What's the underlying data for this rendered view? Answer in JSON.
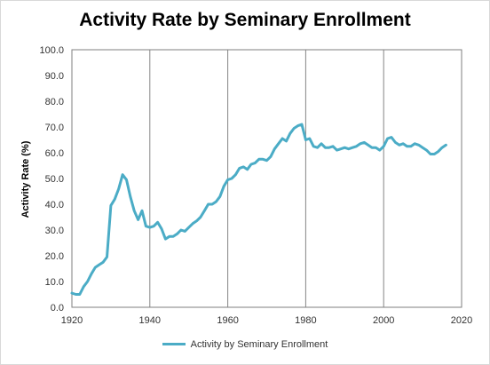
{
  "chart_data": {
    "type": "line",
    "title": "Activity Rate by Seminary Enrollment",
    "xlabel": "",
    "ylabel": "Activity Rate (%)",
    "xlim": [
      1920,
      2020
    ],
    "ylim": [
      0,
      100
    ],
    "x_ticks": [
      1920,
      1940,
      1960,
      1980,
      2000,
      2020
    ],
    "y_ticks": [
      "0.0",
      "10.0",
      "20.0",
      "30.0",
      "40.0",
      "50.0",
      "60.0",
      "70.0",
      "80.0",
      "90.0",
      "100.0"
    ],
    "grid": "vertical major gridlines",
    "legend_position": "bottom",
    "series": [
      {
        "name": "Activity by Seminary Enrollment",
        "color": "#4bacc6",
        "points": [
          [
            1920,
            5.5
          ],
          [
            1921,
            5.0
          ],
          [
            1922,
            5.0
          ],
          [
            1923,
            8.0
          ],
          [
            1924,
            10.0
          ],
          [
            1925,
            13.0
          ],
          [
            1926,
            15.5
          ],
          [
            1927,
            16.5
          ],
          [
            1928,
            17.5
          ],
          [
            1929,
            19.5
          ],
          [
            1930,
            39.5
          ],
          [
            1931,
            42.0
          ],
          [
            1932,
            46.0
          ],
          [
            1933,
            51.5
          ],
          [
            1934,
            49.5
          ],
          [
            1935,
            43.0
          ],
          [
            1936,
            37.5
          ],
          [
            1937,
            34.0
          ],
          [
            1938,
            37.5
          ],
          [
            1939,
            31.5
          ],
          [
            1940,
            31.0
          ],
          [
            1941,
            31.5
          ],
          [
            1942,
            33.0
          ],
          [
            1943,
            30.5
          ],
          [
            1944,
            26.5
          ],
          [
            1945,
            27.5
          ],
          [
            1946,
            27.5
          ],
          [
            1947,
            28.5
          ],
          [
            1948,
            30.0
          ],
          [
            1949,
            29.5
          ],
          [
            1950,
            31.0
          ],
          [
            1951,
            32.5
          ],
          [
            1952,
            33.5
          ],
          [
            1953,
            35.0
          ],
          [
            1954,
            37.5
          ],
          [
            1955,
            40.0
          ],
          [
            1956,
            40.0
          ],
          [
            1957,
            41.0
          ],
          [
            1958,
            43.0
          ],
          [
            1959,
            47.0
          ],
          [
            1960,
            49.5
          ],
          [
            1961,
            50.0
          ],
          [
            1962,
            51.5
          ],
          [
            1963,
            54.0
          ],
          [
            1964,
            54.5
          ],
          [
            1965,
            53.5
          ],
          [
            1966,
            55.5
          ],
          [
            1967,
            56.0
          ],
          [
            1968,
            57.5
          ],
          [
            1969,
            57.5
          ],
          [
            1970,
            57.0
          ],
          [
            1971,
            58.5
          ],
          [
            1972,
            61.5
          ],
          [
            1973,
            63.5
          ],
          [
            1974,
            65.5
          ],
          [
            1975,
            64.5
          ],
          [
            1976,
            67.5
          ],
          [
            1977,
            69.5
          ],
          [
            1978,
            70.5
          ],
          [
            1979,
            71.0
          ],
          [
            1980,
            65.0
          ],
          [
            1981,
            65.5
          ],
          [
            1982,
            62.5
          ],
          [
            1983,
            62.0
          ],
          [
            1984,
            63.5
          ],
          [
            1985,
            62.0
          ],
          [
            1986,
            62.0
          ],
          [
            1987,
            62.5
          ],
          [
            1988,
            61.0
          ],
          [
            1989,
            61.5
          ],
          [
            1990,
            62.0
          ],
          [
            1991,
            61.5
          ],
          [
            1992,
            62.0
          ],
          [
            1993,
            62.5
          ],
          [
            1994,
            63.5
          ],
          [
            1995,
            64.0
          ],
          [
            1996,
            63.0
          ],
          [
            1997,
            62.0
          ],
          [
            1998,
            62.0
          ],
          [
            1999,
            61.0
          ],
          [
            2000,
            62.5
          ],
          [
            2001,
            65.5
          ],
          [
            2002,
            66.0
          ],
          [
            2003,
            64.0
          ],
          [
            2004,
            63.0
          ],
          [
            2005,
            63.5
          ],
          [
            2006,
            62.5
          ],
          [
            2007,
            62.5
          ],
          [
            2008,
            63.5
          ],
          [
            2009,
            63.0
          ],
          [
            2010,
            62.0
          ],
          [
            2011,
            61.0
          ],
          [
            2012,
            59.5
          ],
          [
            2013,
            59.5
          ],
          [
            2014,
            60.5
          ],
          [
            2015,
            62.0
          ],
          [
            2016,
            63.0
          ]
        ]
      }
    ]
  }
}
